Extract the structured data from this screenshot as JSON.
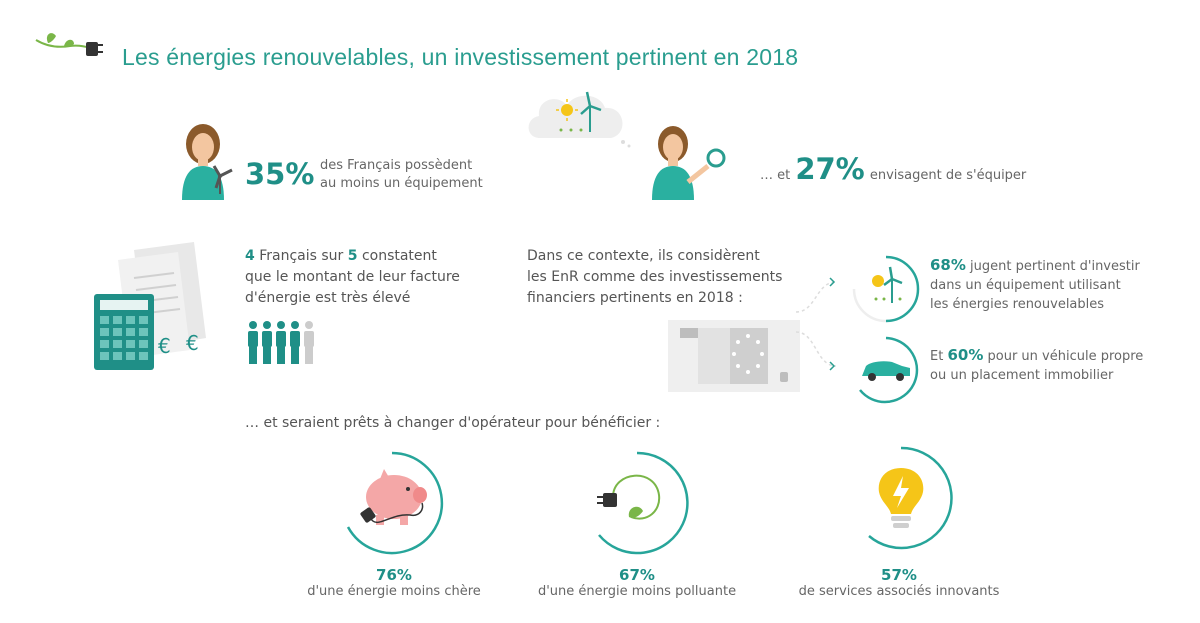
{
  "title": "Les énergies renouvelables, un investissement pertinent en 2018",
  "colors": {
    "teal": "#1f8f87",
    "green": "#5cb85c",
    "ring": "#27a59a",
    "yellow": "#f5c518",
    "pink": "#f4a7a7"
  },
  "stat1": {
    "value": "35%",
    "line1": "des Français possèdent",
    "line2": "au moins un équipement"
  },
  "stat2": {
    "prefix": "… et",
    "value": "27%",
    "text": "envisagent de s'équiper"
  },
  "bills": {
    "n1": "4",
    "mid": "Français sur",
    "n2": "5",
    "rest": "constatent",
    "line2": "que le montant de leur facture",
    "line3": "d'énergie est très élevé",
    "filled_people": 4,
    "total_people": 5
  },
  "context": {
    "line1": "Dans ce contexte, ils considèrent",
    "line2": "les EnR comme des investissements",
    "line3": "financiers pertinents en 2018 :"
  },
  "invest1": {
    "value": "68%",
    "line1": "jugent pertinent d'investir",
    "line2": "dans un équipement utilisant",
    "line3": "les énergies renouvelables"
  },
  "invest2": {
    "prefix": "Et",
    "value": "60%",
    "line1": "pour un véhicule propre",
    "line2": "ou un placement immobilier"
  },
  "switch_intro": "… et seraient prêts à changer d'opérateur pour bénéficier :",
  "benefits": [
    {
      "value": "76%",
      "label": "d'une énergie moins chère",
      "icon": "piggy-bank-plug-icon"
    },
    {
      "value": "67%",
      "label": "d'une énergie moins polluante",
      "icon": "plug-leaf-icon"
    },
    {
      "value": "57%",
      "label": "de services associés innovants",
      "icon": "lightbulb-bolt-icon"
    }
  ]
}
